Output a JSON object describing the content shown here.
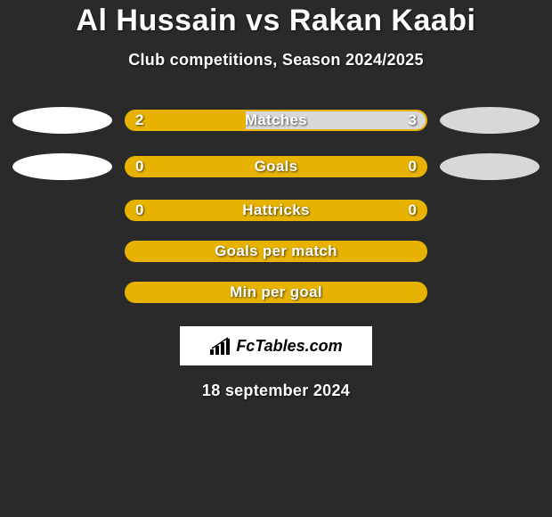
{
  "title": "Al Hussain vs Rakan Kaabi",
  "subtitle": "Club competitions, Season 2024/2025",
  "background_color": "#2a2a2a",
  "primary_color": "#e7b300",
  "oval_left_color": "#ffffff",
  "oval_right_color": "#d8d8d8",
  "rows": [
    {
      "label": "Matches",
      "left_value": "2",
      "right_value": "3",
      "left_pct": 40,
      "right_pct": 60,
      "left_fill_color": "#e7b300",
      "right_fill_color": "#d8d8d8",
      "show_ovals": true,
      "show_values": true
    },
    {
      "label": "Goals",
      "left_value": "0",
      "right_value": "0",
      "left_pct": 0,
      "right_pct": 0,
      "left_fill_color": "#e7b300",
      "right_fill_color": "#d8d8d8",
      "show_ovals": true,
      "show_values": true
    },
    {
      "label": "Hattricks",
      "left_value": "0",
      "right_value": "0",
      "left_pct": 0,
      "right_pct": 0,
      "left_fill_color": "#e7b300",
      "right_fill_color": "#d8d8d8",
      "show_ovals": false,
      "show_values": true
    },
    {
      "label": "Goals per match",
      "left_value": "",
      "right_value": "",
      "left_pct": 0,
      "right_pct": 0,
      "left_fill_color": "#e7b300",
      "right_fill_color": "#d8d8d8",
      "show_ovals": false,
      "show_values": false
    },
    {
      "label": "Min per goal",
      "left_value": "",
      "right_value": "",
      "left_pct": 0,
      "right_pct": 0,
      "left_fill_color": "#e7b300",
      "right_fill_color": "#d8d8d8",
      "show_ovals": false,
      "show_values": false
    }
  ],
  "logo_text": "FcTables.com",
  "date": "18 september 2024"
}
